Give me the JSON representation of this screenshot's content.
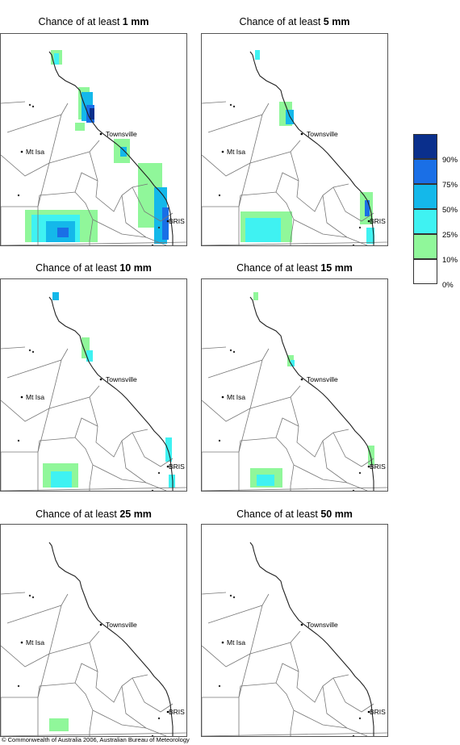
{
  "panels": [
    {
      "prefix": "Chance of at least ",
      "amount": "1 mm"
    },
    {
      "prefix": "Chance of at least ",
      "amount": "5 mm"
    },
    {
      "prefix": "Chance of at least ",
      "amount": "10 mm"
    },
    {
      "prefix": "Chance of at least ",
      "amount": "15 mm"
    },
    {
      "prefix": "Chance of at least ",
      "amount": "25 mm"
    },
    {
      "prefix": "Chance of at least ",
      "amount": "50 mm"
    }
  ],
  "places": {
    "townsville": "Townsville",
    "mt_isa": "Mt Isa",
    "bris": "BRIS"
  },
  "legend": {
    "labels": [
      "90%",
      "75%",
      "50%",
      "25%",
      "10%",
      "0%"
    ],
    "colors": [
      "#0a2f8c",
      "#1a6fe6",
      "#14b8ea",
      "#3ff2f2",
      "#90f79a",
      "#ffffff"
    ]
  },
  "copyright": "© Commonwealth of Australia 2006, Australian Bureau of Meteorology"
}
